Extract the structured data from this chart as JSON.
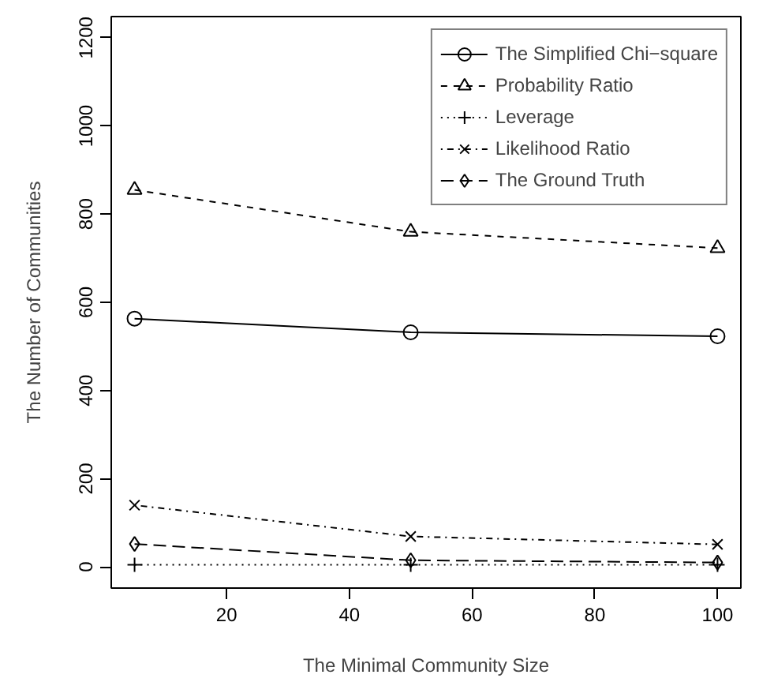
{
  "chart_data": {
    "type": "line",
    "xlabel": "The Minimal Community Size",
    "ylabel": "The Number of Communities",
    "x": [
      5,
      50,
      100
    ],
    "xlim": [
      1.2,
      103.8
    ],
    "xticks": [
      20,
      40,
      60,
      80,
      100
    ],
    "ylim": [
      -48,
      1248
    ],
    "yticks": [
      0,
      200,
      400,
      600,
      800,
      1000,
      1200
    ],
    "grid": false,
    "legend": "top right",
    "series": [
      {
        "name": "The Simplified Chi−square",
        "color": "#000000",
        "values": [
          563,
          532,
          523
        ],
        "marker": "circle",
        "line_style": "solid"
      },
      {
        "name": "Probability Ratio",
        "color": "#000000",
        "values": [
          855,
          760,
          723
        ],
        "marker": "triangle",
        "line_style": "dashed"
      },
      {
        "name": "Leverage",
        "color": "#000000",
        "values": [
          5,
          5,
          5
        ],
        "marker": "cross",
        "line_style": "dotted"
      },
      {
        "name": "Likelihood Ratio",
        "color": "#000000",
        "values": [
          140,
          69,
          51
        ],
        "marker": "x",
        "line_style": "dotdash"
      },
      {
        "name": "The Ground Truth",
        "color": "#000000",
        "values": [
          52,
          15,
          10
        ],
        "marker": "diamond",
        "line_style": "longdash"
      }
    ]
  }
}
